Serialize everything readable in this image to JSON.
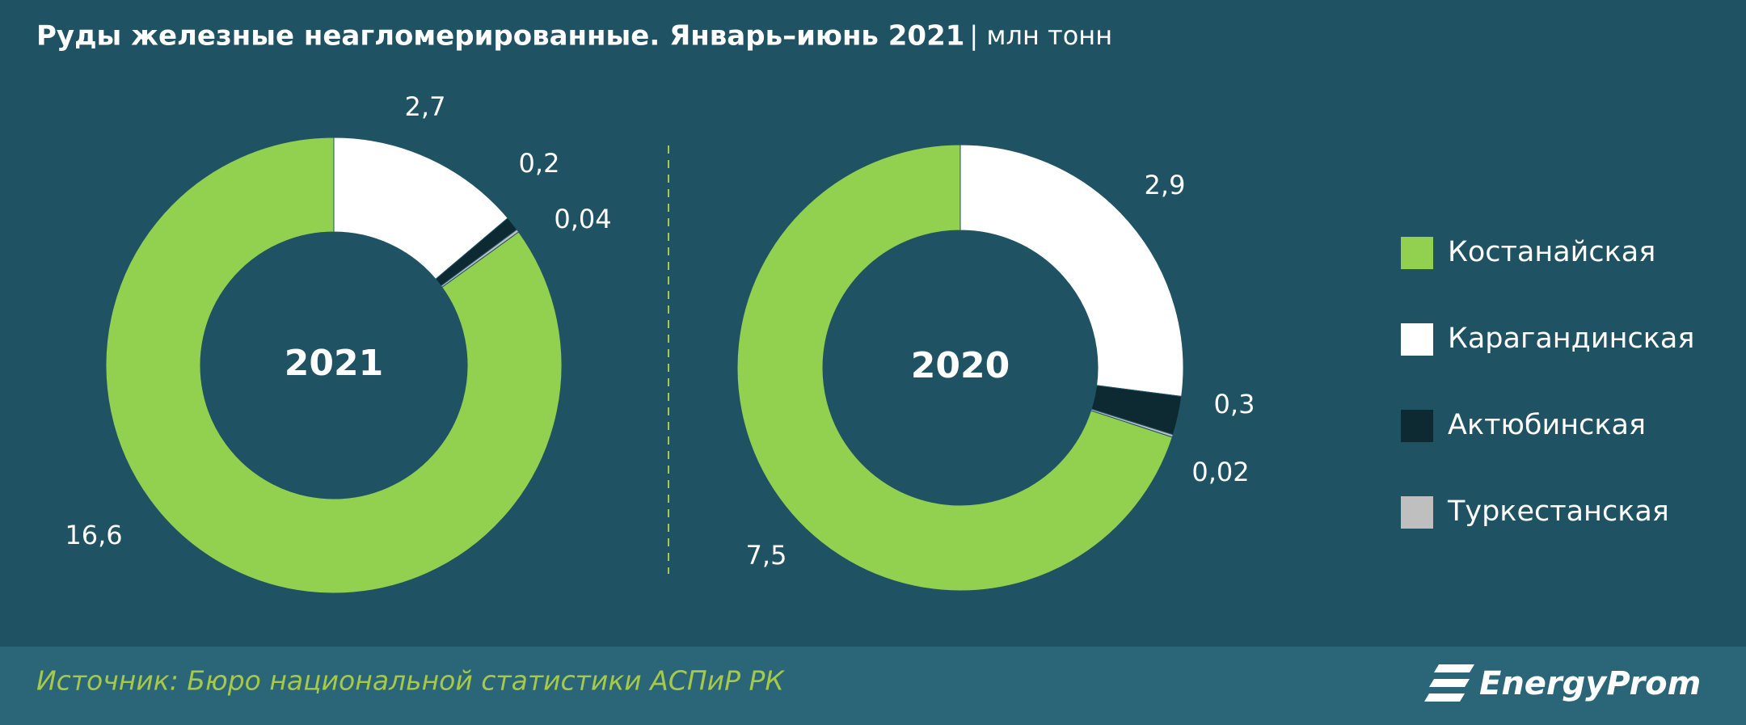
{
  "title": "Руды железные неагломерированные.  Январь–июнь  2021",
  "unit": "| млн тонн",
  "source": "Источник: Бюро национальной  статистики АСПиР РК",
  "logo": "EnergyProm",
  "chart_data": [
    {
      "type": "pie",
      "center_label": "2021",
      "categories": [
        "Костанайская",
        "Карагандинская",
        "Актюбинская",
        "Туркестанская"
      ],
      "values": [
        16.6,
        2.7,
        0.2,
        0.04
      ],
      "value_labels": [
        "16,6",
        "2,7",
        "0,2",
        "0,04"
      ],
      "colors": [
        "#92d050",
        "#ffffff",
        "#0d2a33",
        "#bfbfbf"
      ]
    },
    {
      "type": "pie",
      "center_label": "2020",
      "categories": [
        "Костанайская",
        "Карагандинская",
        "Актюбинская",
        "Туркестанская"
      ],
      "values": [
        7.5,
        2.9,
        0.3,
        0.02
      ],
      "value_labels": [
        "7,5",
        "2,9",
        "0,3",
        "0,02"
      ],
      "colors": [
        "#92d050",
        "#ffffff",
        "#0d2a33",
        "#bfbfbf"
      ]
    }
  ]
}
